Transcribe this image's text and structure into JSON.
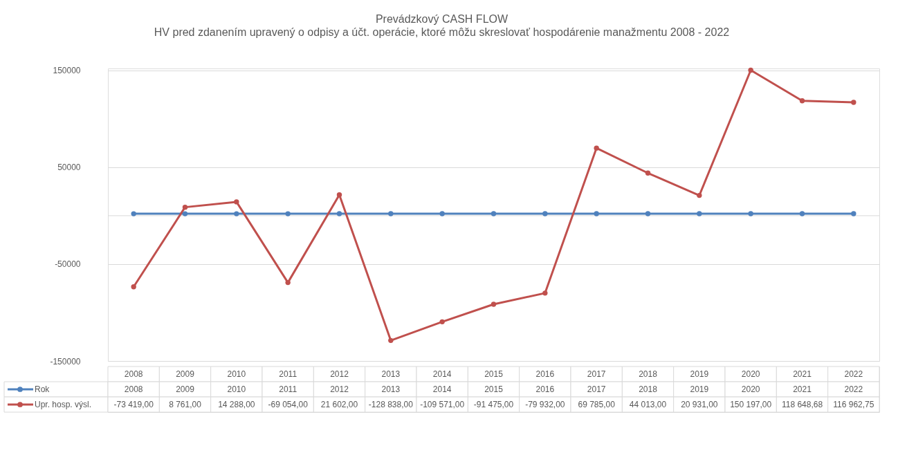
{
  "chart_data": {
    "type": "line",
    "title": "Prevádzkový CASH FLOW",
    "subtitle": "HV pred zdanením upravený o odpisy a účt. operácie, ktoré môžu skreslovať hospodárenie manažmentu 2008 - 2022",
    "categories": [
      "2008",
      "2009",
      "2010",
      "2011",
      "2012",
      "2013",
      "2014",
      "2015",
      "2016",
      "2017",
      "2018",
      "2019",
      "2020",
      "2021",
      "2022"
    ],
    "series": [
      {
        "name": "Rok",
        "color": "#4f81bd",
        "values": [
          2008,
          2009,
          2010,
          2011,
          2012,
          2013,
          2014,
          2015,
          2016,
          2017,
          2018,
          2019,
          2020,
          2021,
          2022
        ],
        "value_labels": [
          "2008",
          "2009",
          "2010",
          "2011",
          "2012",
          "2013",
          "2014",
          "2015",
          "2016",
          "2017",
          "2018",
          "2019",
          "2020",
          "2021",
          "2022"
        ]
      },
      {
        "name": "Upr. hosp. výsl.",
        "color": "#c0504d",
        "values": [
          -73419,
          8761,
          14288,
          -69054,
          21602,
          -128838,
          -109571,
          -91475,
          -79932,
          69785,
          44013,
          20931,
          150197,
          118648.68,
          116962.75
        ],
        "value_labels": [
          "-73 419,00",
          "8 761,00",
          "14 288,00",
          "-69 054,00",
          "21 602,00",
          "-128 838,00",
          "-109 571,00",
          "-91 475,00",
          "-79 932,00",
          "69 785,00",
          "44 013,00",
          "20 931,00",
          "150 197,00",
          "118 648,68",
          "116 962,75"
        ]
      }
    ],
    "ylim": [
      -150000,
      152000
    ],
    "yticks": [
      -150000,
      -50000,
      50000,
      150000
    ],
    "ref_lines": [
      {
        "axis": "y",
        "value": 0,
        "color": "#d9d9d9"
      }
    ],
    "grid": "y",
    "legend": "bottom",
    "tick_labels": "y",
    "marker": "circle",
    "line_style": "solid"
  }
}
